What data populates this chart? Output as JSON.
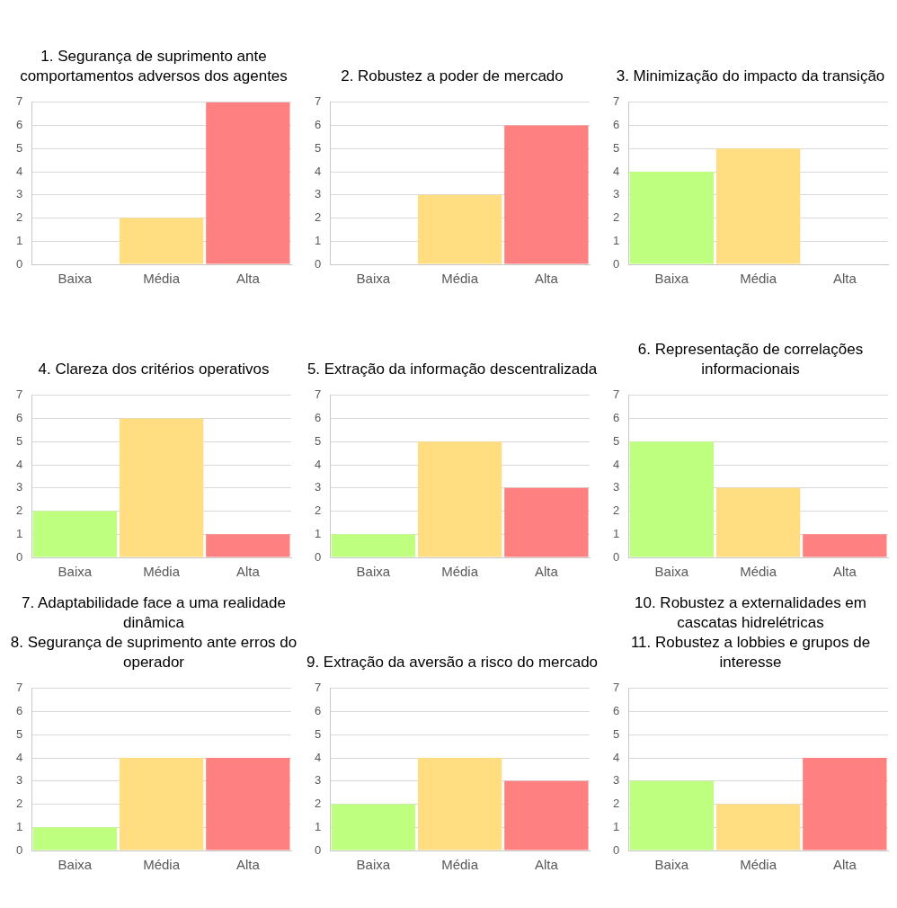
{
  "chart_data": [
    {
      "type": "bar",
      "title": "1. Segurança de suprimento ante comportamentos adversos dos agentes",
      "categories": [
        "Baixa",
        "Média",
        "Alta"
      ],
      "values": [
        0,
        2,
        7
      ],
      "colors": [
        "#bfff80",
        "#ffdd80",
        "#ff8080"
      ],
      "ylim": [
        0,
        7
      ],
      "yticks": [
        0,
        1,
        2,
        3,
        4,
        5,
        6,
        7
      ],
      "grid": "y",
      "legend": false
    },
    {
      "type": "bar",
      "title": "2. Robustez a poder de mercado",
      "categories": [
        "Baixa",
        "Média",
        "Alta"
      ],
      "values": [
        0,
        3,
        6
      ],
      "colors": [
        "#bfff80",
        "#ffdd80",
        "#ff8080"
      ],
      "ylim": [
        0,
        7
      ],
      "yticks": [
        0,
        1,
        2,
        3,
        4,
        5,
        6,
        7
      ],
      "grid": "y",
      "legend": false
    },
    {
      "type": "bar",
      "title": "3. Minimização do impacto da transição",
      "categories": [
        "Baixa",
        "Média",
        "Alta"
      ],
      "values": [
        4,
        5,
        0
      ],
      "colors": [
        "#bfff80",
        "#ffdd80",
        "#ff8080"
      ],
      "ylim": [
        0,
        7
      ],
      "yticks": [
        0,
        1,
        2,
        3,
        4,
        5,
        6,
        7
      ],
      "grid": "y",
      "legend": false
    },
    {
      "type": "bar",
      "title": "4. Clareza dos critérios operativos",
      "categories": [
        "Baixa",
        "Média",
        "Alta"
      ],
      "values": [
        2,
        6,
        1
      ],
      "colors": [
        "#bfff80",
        "#ffdd80",
        "#ff8080"
      ],
      "ylim": [
        0,
        7
      ],
      "yticks": [
        0,
        1,
        2,
        3,
        4,
        5,
        6,
        7
      ],
      "grid": "y",
      "legend": false
    },
    {
      "type": "bar",
      "title": "5. Extração da informação descentralizada",
      "categories": [
        "Baixa",
        "Média",
        "Alta"
      ],
      "values": [
        1,
        5,
        3
      ],
      "colors": [
        "#bfff80",
        "#ffdd80",
        "#ff8080"
      ],
      "ylim": [
        0,
        7
      ],
      "yticks": [
        0,
        1,
        2,
        3,
        4,
        5,
        6,
        7
      ],
      "grid": "y",
      "legend": false
    },
    {
      "type": "bar",
      "title": "6. Representação de correlações informacionais",
      "categories": [
        "Baixa",
        "Média",
        "Alta"
      ],
      "values": [
        5,
        3,
        1
      ],
      "colors": [
        "#bfff80",
        "#ffdd80",
        "#ff8080"
      ],
      "ylim": [
        0,
        7
      ],
      "yticks": [
        0,
        1,
        2,
        3,
        4,
        5,
        6,
        7
      ],
      "grid": "y",
      "legend": false
    },
    {
      "type": "bar",
      "title": "7. Adaptabilidade face a uma realidade dinâmica\n8. Segurança de suprimento ante erros do operador",
      "categories": [
        "Baixa",
        "Média",
        "Alta"
      ],
      "values": [
        1,
        4,
        4
      ],
      "colors": [
        "#bfff80",
        "#ffdd80",
        "#ff8080"
      ],
      "ylim": [
        0,
        7
      ],
      "yticks": [
        0,
        1,
        2,
        3,
        4,
        5,
        6,
        7
      ],
      "grid": "y",
      "legend": false
    },
    {
      "type": "bar",
      "title": "9. Extração da aversão a risco do mercado",
      "categories": [
        "Baixa",
        "Média",
        "Alta"
      ],
      "values": [
        2,
        4,
        3
      ],
      "colors": [
        "#bfff80",
        "#ffdd80",
        "#ff8080"
      ],
      "ylim": [
        0,
        7
      ],
      "yticks": [
        0,
        1,
        2,
        3,
        4,
        5,
        6,
        7
      ],
      "grid": "y",
      "legend": false
    },
    {
      "type": "bar",
      "title": "10. Robustez a externalidades em cascatas hidrelétricas\n11. Robustez a lobbies e grupos de interesse",
      "categories": [
        "Baixa",
        "Média",
        "Alta"
      ],
      "values": [
        3,
        2,
        4
      ],
      "colors": [
        "#bfff80",
        "#ffdd80",
        "#ff8080"
      ],
      "ylim": [
        0,
        7
      ],
      "yticks": [
        0,
        1,
        2,
        3,
        4,
        5,
        6,
        7
      ],
      "grid": "y",
      "legend": false
    }
  ]
}
